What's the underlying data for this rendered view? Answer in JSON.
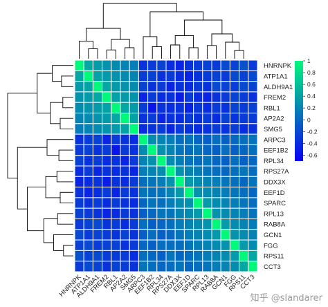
{
  "chart_data": {
    "type": "heatmap",
    "title": "",
    "xlabel": "",
    "ylabel": "",
    "rows": [
      "HNRNPK",
      "ATP1A1",
      "ALDH9A1",
      "FREM2",
      "RBL1",
      "AP2A2",
      "SMG5",
      "ARPC3",
      "EEF1B2",
      "RPL34",
      "RPS27A",
      "DDX3X",
      "EEF1D",
      "SPARC",
      "RPL13",
      "RAB8A",
      "GCN1",
      "FGG",
      "RPS11",
      "CCT3"
    ],
    "columns": [
      "HNRNPK",
      "ATP1A1",
      "ALDH9A1",
      "FREM2",
      "RBL1",
      "AP2A2",
      "SMG5",
      "ARPC3",
      "EEF1B2",
      "RPL34",
      "RPS27A",
      "DDX3X",
      "EEF1D",
      "SPARC",
      "RPL13",
      "RAB8A",
      "GCN1",
      "FGG",
      "RPS11",
      "CCT3"
    ],
    "values": [
      [
        1.0,
        0.45,
        0.35,
        0.3,
        0.25,
        0.2,
        0.15,
        -0.35,
        -0.3,
        -0.25,
        -0.4,
        -0.45,
        -0.35,
        -0.3,
        -0.25,
        -0.3,
        -0.2,
        -0.25,
        -0.15,
        -0.3
      ],
      [
        0.45,
        1.0,
        0.4,
        0.35,
        0.3,
        0.25,
        0.2,
        -0.3,
        -0.25,
        -0.35,
        -0.3,
        -0.4,
        -0.45,
        -0.35,
        -0.3,
        -0.25,
        -0.3,
        -0.2,
        -0.25,
        -0.2
      ],
      [
        0.35,
        0.4,
        1.0,
        0.45,
        0.35,
        0.3,
        0.25,
        -0.25,
        -0.35,
        -0.3,
        -0.45,
        -0.35,
        -0.4,
        -0.3,
        -0.35,
        -0.2,
        -0.25,
        -0.3,
        -0.2,
        -0.25
      ],
      [
        0.3,
        0.35,
        0.45,
        1.0,
        0.4,
        0.35,
        0.3,
        -0.45,
        -0.3,
        -0.4,
        -0.35,
        -0.5,
        -0.3,
        -0.4,
        -0.45,
        -0.35,
        -0.3,
        -0.25,
        -0.3,
        -0.35
      ],
      [
        0.25,
        0.3,
        0.35,
        0.4,
        1.0,
        0.45,
        0.35,
        -0.3,
        -0.55,
        -0.35,
        -0.4,
        -0.35,
        -0.45,
        -0.3,
        -0.4,
        -0.3,
        -0.35,
        -0.25,
        -0.3,
        -0.25
      ],
      [
        0.2,
        0.25,
        0.3,
        0.35,
        0.45,
        1.0,
        0.4,
        -0.35,
        -0.3,
        -0.45,
        -0.35,
        -0.4,
        -0.3,
        -0.35,
        -0.3,
        -0.4,
        -0.25,
        -0.35,
        -0.3,
        -0.3
      ],
      [
        0.15,
        0.2,
        0.25,
        0.3,
        0.35,
        0.4,
        1.0,
        -0.4,
        -0.35,
        -0.3,
        -0.45,
        -0.3,
        -0.35,
        -0.4,
        -0.35,
        -0.3,
        -0.35,
        -0.3,
        -0.4,
        -0.35
      ],
      [
        -0.35,
        -0.3,
        -0.25,
        -0.45,
        -0.3,
        -0.35,
        -0.4,
        1.0,
        0.25,
        0.2,
        0.15,
        0.05,
        0.1,
        0.0,
        -0.05,
        0.05,
        -0.05,
        0.0,
        0.05,
        0.1
      ],
      [
        -0.3,
        -0.25,
        -0.35,
        -0.3,
        -0.55,
        -0.3,
        -0.35,
        0.25,
        1.0,
        0.3,
        0.2,
        0.1,
        0.05,
        0.1,
        0.0,
        -0.05,
        0.05,
        -0.05,
        0.0,
        0.05
      ],
      [
        -0.25,
        -0.35,
        -0.3,
        -0.4,
        -0.35,
        -0.45,
        -0.3,
        0.2,
        0.3,
        1.0,
        0.25,
        0.15,
        0.1,
        0.05,
        0.1,
        0.0,
        -0.05,
        0.05,
        -0.05,
        0.0
      ],
      [
        -0.4,
        -0.3,
        -0.45,
        -0.35,
        -0.4,
        -0.35,
        -0.45,
        0.15,
        0.2,
        0.25,
        1.0,
        0.3,
        0.2,
        0.15,
        0.1,
        0.05,
        0.0,
        0.05,
        0.1,
        0.05
      ],
      [
        -0.45,
        -0.4,
        -0.35,
        -0.5,
        -0.35,
        -0.4,
        -0.3,
        0.05,
        0.1,
        0.15,
        0.3,
        1.0,
        0.35,
        0.25,
        0.2,
        0.15,
        0.1,
        0.05,
        0.0,
        0.1
      ],
      [
        -0.35,
        -0.45,
        -0.4,
        -0.3,
        -0.45,
        -0.3,
        -0.35,
        0.1,
        0.05,
        0.1,
        0.2,
        0.35,
        1.0,
        0.3,
        0.25,
        0.2,
        0.15,
        0.1,
        0.05,
        0.0
      ],
      [
        -0.3,
        -0.35,
        -0.3,
        -0.4,
        -0.3,
        -0.35,
        -0.4,
        0.0,
        0.1,
        0.05,
        0.15,
        0.25,
        0.3,
        1.0,
        0.35,
        0.25,
        0.2,
        0.15,
        0.1,
        0.05
      ],
      [
        -0.25,
        -0.3,
        -0.35,
        -0.45,
        -0.4,
        -0.3,
        -0.35,
        -0.05,
        0.0,
        0.1,
        0.1,
        0.2,
        0.25,
        0.35,
        1.0,
        0.3,
        0.25,
        0.2,
        0.15,
        0.1
      ],
      [
        -0.3,
        -0.25,
        -0.2,
        -0.35,
        -0.3,
        -0.4,
        -0.3,
        0.05,
        -0.05,
        0.0,
        0.05,
        0.15,
        0.2,
        0.25,
        0.3,
        1.0,
        0.35,
        0.25,
        0.2,
        0.15
      ],
      [
        -0.2,
        -0.3,
        -0.25,
        -0.3,
        -0.35,
        -0.25,
        -0.35,
        -0.05,
        0.05,
        -0.05,
        0.0,
        0.1,
        0.15,
        0.2,
        0.25,
        0.35,
        1.0,
        0.3,
        0.25,
        0.2
      ],
      [
        -0.25,
        -0.2,
        -0.3,
        -0.25,
        -0.25,
        -0.35,
        -0.3,
        0.0,
        -0.05,
        0.05,
        0.05,
        0.05,
        0.1,
        0.15,
        0.2,
        0.25,
        0.3,
        1.0,
        0.35,
        0.25
      ],
      [
        -0.15,
        -0.25,
        -0.2,
        -0.3,
        -0.3,
        -0.3,
        -0.4,
        0.05,
        0.0,
        -0.05,
        0.1,
        0.0,
        0.05,
        0.1,
        0.15,
        0.2,
        0.25,
        0.35,
        1.0,
        0.45
      ],
      [
        -0.3,
        -0.2,
        -0.25,
        -0.35,
        -0.25,
        -0.3,
        -0.35,
        0.1,
        0.05,
        0.0,
        0.05,
        0.1,
        0.0,
        0.05,
        0.1,
        0.15,
        0.2,
        0.25,
        0.45,
        1.0
      ]
    ],
    "colorbar": {
      "min": -0.7,
      "max": 1.0,
      "ticks": [
        1,
        0.8,
        0.6,
        0.4,
        0.2,
        0,
        -0.2,
        -0.4,
        -0.6
      ],
      "tick_labels": [
        "1",
        "0.8",
        "0.6",
        "0.4",
        "0.2",
        "0",
        "-0.2",
        "-0.4",
        "-0.6"
      ],
      "colors": [
        "#0a00f5",
        "#00f97a"
      ]
    },
    "dendrogram": {
      "top": true,
      "left": true,
      "line_color": "#000000",
      "groups": [
        [
          "HNRNPK",
          "ATP1A1",
          "ALDH9A1",
          "FREM2",
          "RBL1",
          "AP2A2",
          "SMG5"
        ],
        [
          "ARPC3",
          "EEF1B2",
          "RPL34",
          "RPS27A",
          "DDX3X",
          "EEF1D",
          "SPARC",
          "RPL13",
          "RAB8A",
          "GCN1",
          "FGG",
          "RPS11",
          "CCT3"
        ]
      ]
    },
    "grid": true,
    "grid_color": "#ffffff",
    "legend_placement": "right"
  },
  "watermark": "知乎 @slandarer"
}
